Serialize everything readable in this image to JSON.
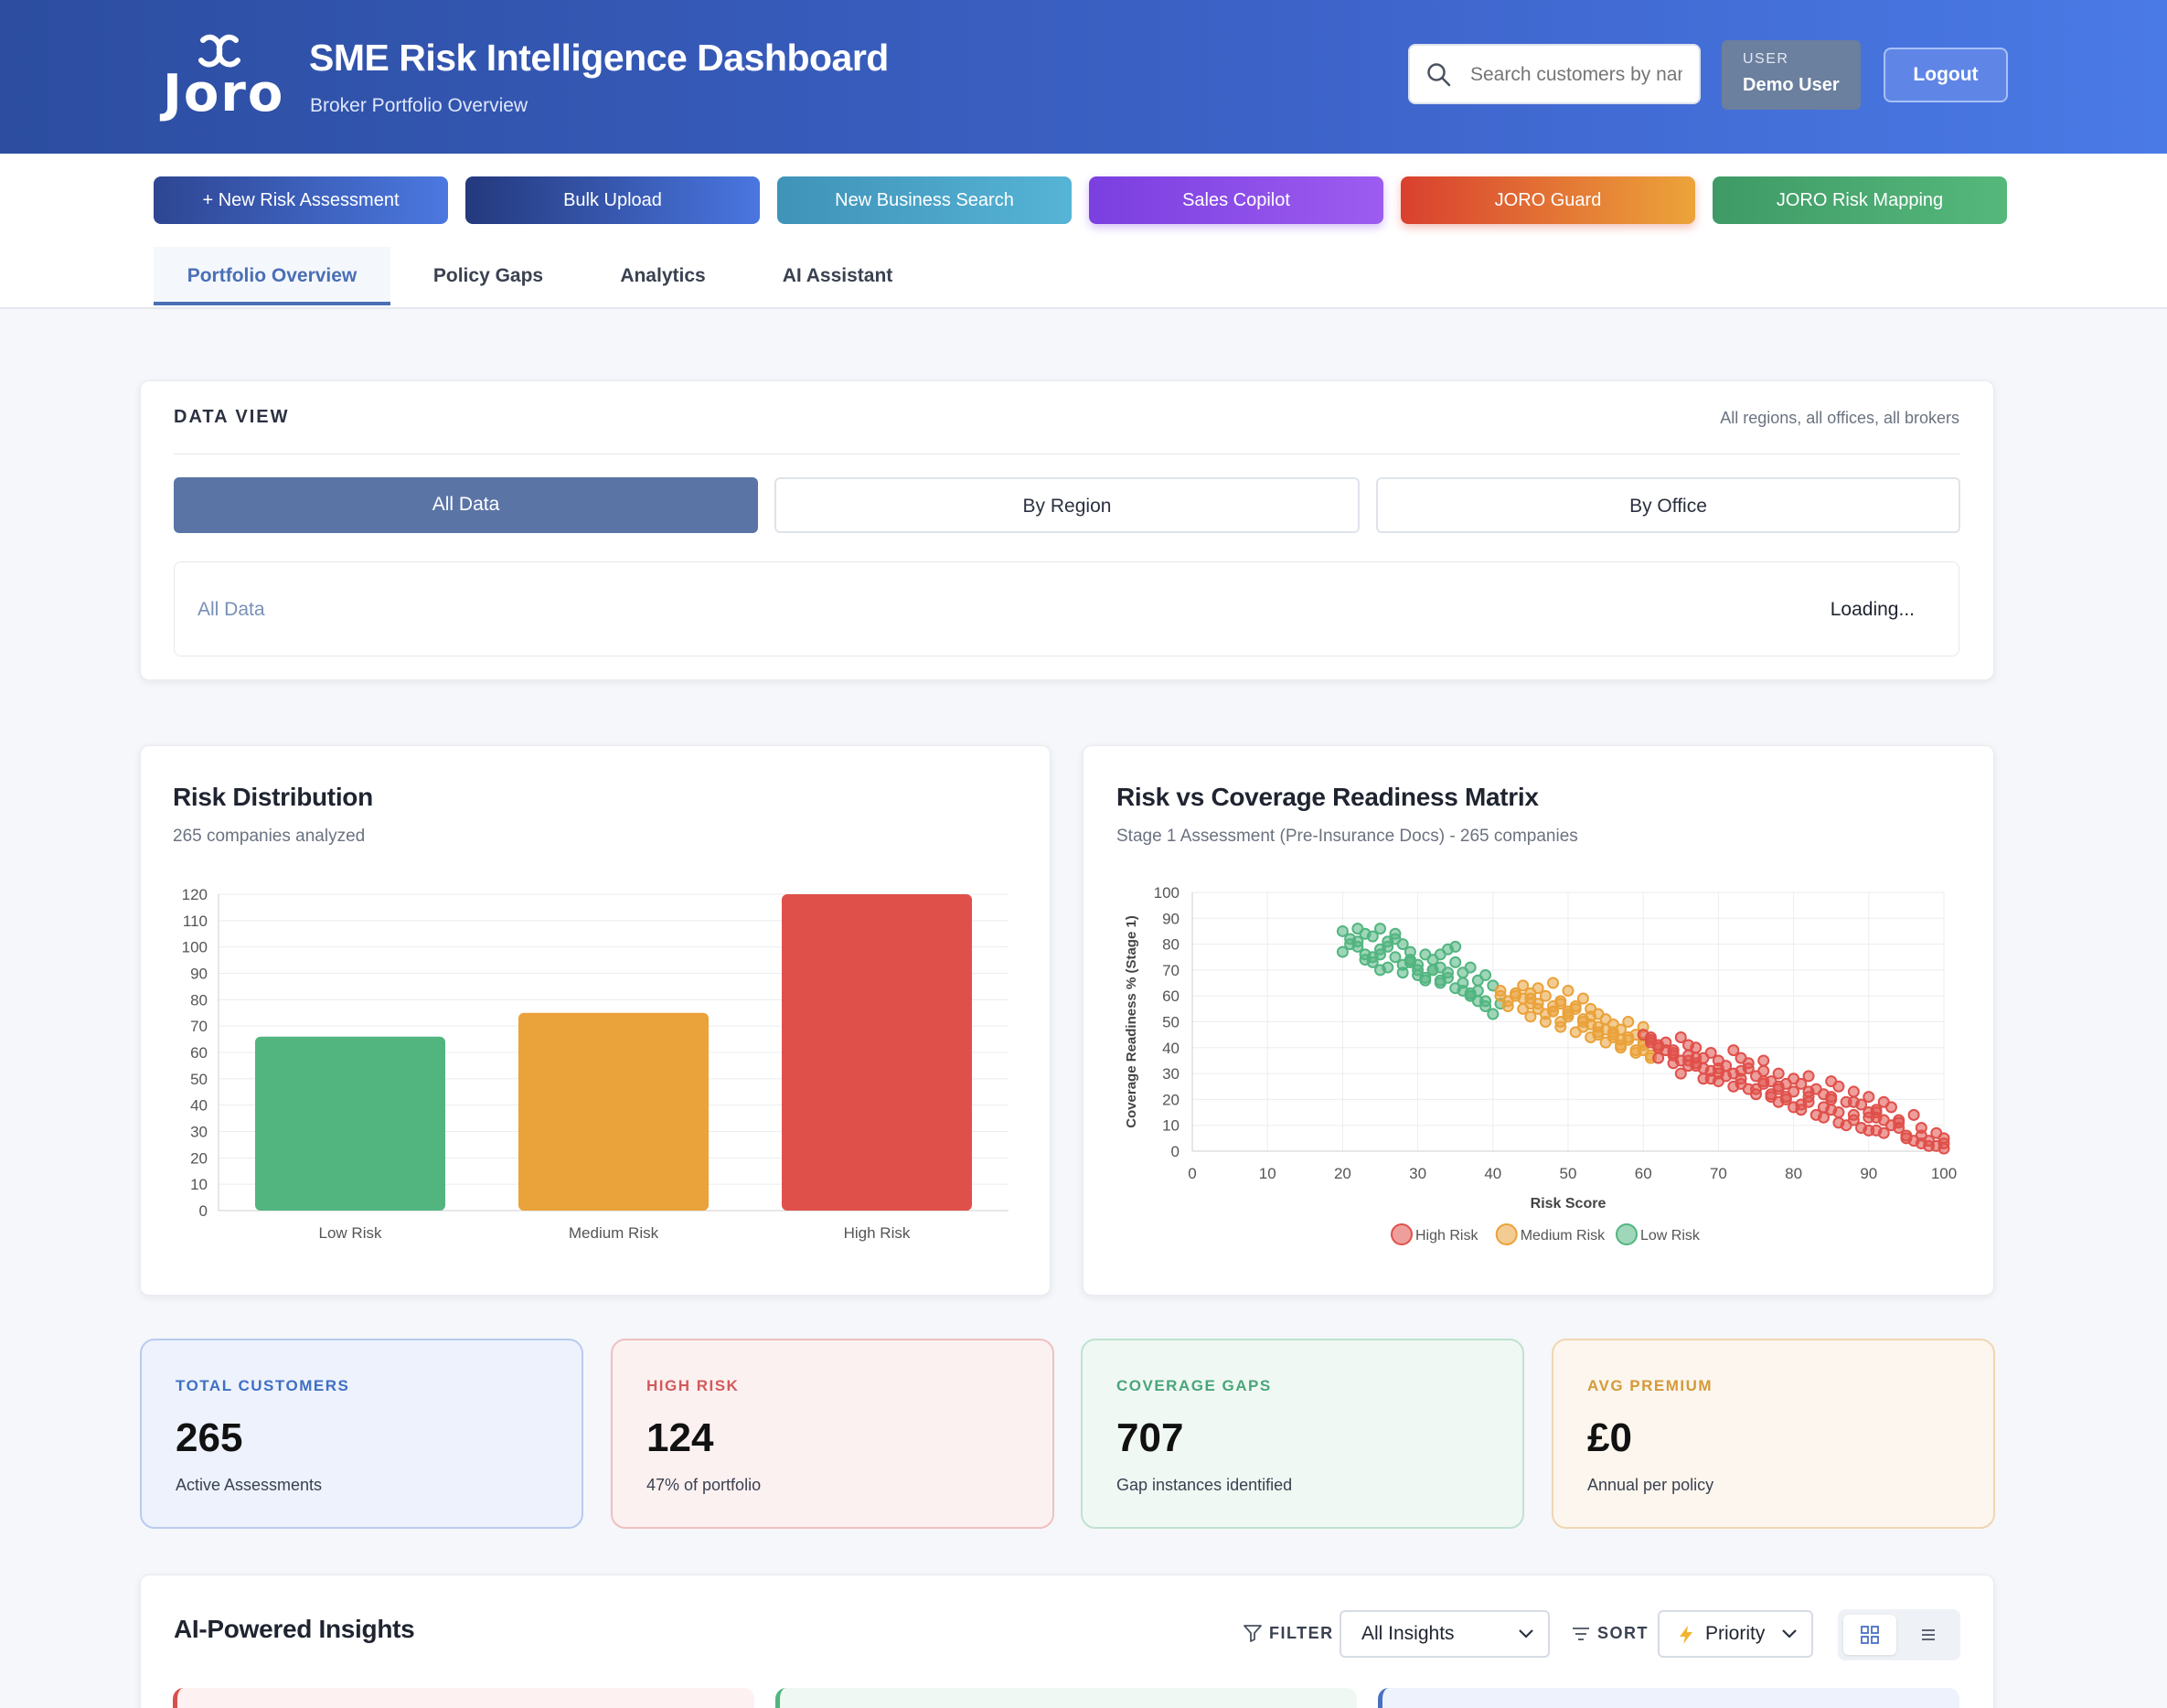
{
  "header": {
    "logo_text": "Joro",
    "title": "SME Risk Intelligence Dashboard",
    "subtitle": "Broker Portfolio Overview",
    "search_placeholder": "Search customers by name...",
    "user_label": "USER",
    "user_name": "Demo User",
    "logout_label": "Logout"
  },
  "actions": [
    {
      "label": "+ New Risk Assessment",
      "color": "#3a5bb8"
    },
    {
      "label": "Bulk Upload",
      "color": "#2f4a9a"
    },
    {
      "label": "New Business Search",
      "color": "#4aa6c9"
    },
    {
      "label": "Sales Copilot",
      "color": "#8a4de8"
    },
    {
      "label": "JORO Guard",
      "color": "#e0503a"
    },
    {
      "label": "JORO Risk Mapping",
      "color": "#4aaa70"
    }
  ],
  "tabs": [
    "Portfolio Overview",
    "Policy Gaps",
    "Analytics",
    "AI Assistant"
  ],
  "active_tab": "Portfolio Overview",
  "data_view": {
    "title": "DATA VIEW",
    "scope_note": "All regions, all offices, all brokers",
    "segments": [
      "All Data",
      "By Region",
      "By Office"
    ],
    "selected_segment": "All Data",
    "info_label": "All Data",
    "info_status": "Loading..."
  },
  "risk_distribution": {
    "title": "Risk Distribution",
    "subtitle": "265 companies analyzed"
  },
  "matrix": {
    "title": "Risk vs Coverage Readiness Matrix",
    "subtitle": "Stage 1 Assessment (Pre-Insurance Docs) - 265 companies"
  },
  "chart_data": [
    {
      "type": "bar",
      "categories": [
        "Low Risk",
        "Medium Risk",
        "High Risk"
      ],
      "values": [
        66,
        75,
        124
      ],
      "colors": [
        "#52b580",
        "#eaa23a",
        "#e0504b"
      ],
      "title": "Risk Distribution",
      "xlabel": "",
      "ylabel": "",
      "ylim": [
        0,
        120
      ],
      "ticks": [
        0,
        10,
        20,
        30,
        40,
        50,
        60,
        70,
        80,
        90,
        100,
        110,
        120
      ],
      "grid": true
    },
    {
      "type": "scatter",
      "title": "Risk vs Coverage Readiness Matrix",
      "xlabel": "Risk Score",
      "ylabel": "Coverage Readiness % (Stage 1)",
      "xlim": [
        0,
        100
      ],
      "ylim": [
        0,
        100
      ],
      "xticks": [
        0,
        10,
        20,
        30,
        40,
        50,
        60,
        70,
        80,
        90,
        100
      ],
      "yticks": [
        0,
        10,
        20,
        30,
        40,
        50,
        60,
        70,
        80,
        90,
        100
      ],
      "grid": true,
      "legend_position": "bottom",
      "series": [
        {
          "name": "High Risk",
          "color": "#e0504b",
          "x": [
            60,
            61,
            62,
            62,
            63,
            64,
            64,
            65,
            65,
            66,
            66,
            67,
            67,
            68,
            68,
            69,
            69,
            70,
            70,
            71,
            72,
            72,
            73,
            73,
            74,
            74,
            75,
            75,
            76,
            76,
            77,
            77,
            78,
            78,
            79,
            80,
            80,
            81,
            81,
            82,
            82,
            83,
            84,
            84,
            85,
            85,
            86,
            86,
            87,
            88,
            88,
            89,
            90,
            90,
            91,
            91,
            92,
            92,
            93,
            94,
            95,
            96,
            97,
            98,
            99,
            100,
            62,
            65,
            68,
            71,
            74,
            77,
            80,
            83,
            86,
            89,
            92,
            95,
            98,
            63,
            66,
            69,
            72,
            75,
            78,
            81,
            84,
            87,
            90,
            93,
            96,
            99,
            61,
            67,
            73,
            79,
            85,
            91,
            97,
            64,
            70,
            76,
            82,
            88,
            94,
            100,
            61,
            64,
            67,
            70,
            73,
            76,
            79,
            82,
            85,
            88,
            91,
            94,
            97,
            100,
            66,
            78,
            90
          ],
          "y": [
            45,
            43,
            40,
            36,
            42,
            38,
            34,
            44,
            30,
            41,
            37,
            33,
            40,
            28,
            36,
            38,
            31,
            35,
            27,
            33,
            39,
            30,
            36,
            26,
            32,
            34,
            29,
            24,
            31,
            35,
            27,
            22,
            30,
            25,
            20,
            28,
            23,
            18,
            26,
            21,
            29,
            24,
            17,
            22,
            27,
            20,
            15,
            25,
            19,
            14,
            23,
            18,
            13,
            21,
            16,
            8,
            19,
            12,
            17,
            11,
            6,
            14,
            9,
            4,
            7,
            3,
            41,
            35,
            32,
            29,
            24,
            21,
            17,
            14,
            11,
            9,
            7,
            5,
            2,
            39,
            33,
            28,
            25,
            22,
            19,
            16,
            13,
            10,
            8,
            10,
            4,
            2,
            44,
            36,
            31,
            26,
            21,
            15,
            6,
            37,
            30,
            27,
            23,
            19,
            12,
            5,
            42,
            39,
            34,
            32,
            28,
            26,
            21,
            19,
            16,
            12,
            13,
            9,
            3,
            1,
            35,
            24,
            15
          ]
        },
        {
          "name": "Medium Risk",
          "color": "#eaa23a",
          "x": [
            41,
            42,
            43,
            44,
            44,
            45,
            45,
            46,
            46,
            47,
            47,
            48,
            48,
            49,
            49,
            50,
            50,
            51,
            51,
            52,
            52,
            53,
            53,
            54,
            54,
            55,
            55,
            56,
            56,
            57,
            57,
            58,
            58,
            59,
            59,
            60,
            60,
            61,
            61,
            42,
            46,
            50,
            54,
            58,
            62,
            44,
            48,
            52,
            56,
            60,
            43,
            47,
            51,
            55,
            59,
            45,
            49,
            53,
            57,
            61,
            41,
            45,
            49,
            53,
            57,
            48,
            52,
            56,
            60,
            50,
            54
          ],
          "y": [
            62,
            58,
            61,
            55,
            64,
            52,
            59,
            57,
            63,
            50,
            60,
            54,
            65,
            48,
            58,
            52,
            62,
            46,
            56,
            50,
            59,
            44,
            55,
            48,
            53,
            42,
            51,
            46,
            49,
            40,
            47,
            43,
            50,
            38,
            45,
            41,
            48,
            37,
            43,
            56,
            55,
            53,
            46,
            44,
            40,
            59,
            54,
            51,
            45,
            42,
            60,
            53,
            55,
            47,
            39,
            57,
            50,
            52,
            41,
            36,
            60,
            61,
            57,
            49,
            43,
            56,
            48,
            44,
            39,
            54,
            45
          ]
        },
        {
          "name": "Low Risk",
          "color": "#52b580",
          "x": [
            20,
            21,
            22,
            22,
            23,
            23,
            24,
            24,
            25,
            25,
            26,
            26,
            27,
            27,
            28,
            28,
            29,
            29,
            30,
            30,
            31,
            31,
            32,
            32,
            33,
            33,
            34,
            34,
            35,
            35,
            36,
            36,
            37,
            37,
            38,
            38,
            39,
            39,
            40,
            40,
            20,
            24,
            28,
            32,
            36,
            21,
            25,
            29,
            33,
            37,
            22,
            26,
            30,
            34,
            38,
            23,
            27,
            31,
            35,
            39,
            25,
            29,
            33,
            37,
            41
          ],
          "y": [
            85,
            82,
            86,
            79,
            84,
            76,
            83,
            73,
            86,
            78,
            81,
            71,
            84,
            75,
            80,
            69,
            77,
            73,
            72,
            68,
            76,
            66,
            74,
            70,
            71,
            65,
            78,
            67,
            73,
            63,
            69,
            62,
            71,
            60,
            66,
            58,
            68,
            56,
            64,
            53,
            77,
            75,
            72,
            70,
            65,
            80,
            70,
            73,
            76,
            61,
            81,
            79,
            70,
            69,
            62,
            74,
            82,
            67,
            79,
            58,
            76,
            74,
            66,
            60,
            57
          ]
        }
      ]
    }
  ],
  "stats": [
    {
      "label": "TOTAL CUSTOMERS",
      "value": "265",
      "desc": "Active Assessments",
      "accent": "#3f6fc4",
      "bg": "#edf2fc",
      "border": "#b9cbee"
    },
    {
      "label": "HIGH RISK",
      "value": "124",
      "desc": "47% of portfolio",
      "accent": "#d25a5a",
      "bg": "#fcf1f1",
      "border": "#efc0c0"
    },
    {
      "label": "COVERAGE GAPS",
      "value": "707",
      "desc": "Gap instances identified",
      "accent": "#4aa57a",
      "bg": "#f0f8f4",
      "border": "#bfe2cf"
    },
    {
      "label": "AVG PREMIUM",
      "value": "£0",
      "desc": "Annual per policy",
      "accent": "#d49a3a",
      "bg": "#fcf6ee",
      "border": "#f0d6b3"
    }
  ],
  "insights": {
    "title": "AI-Powered Insights",
    "filter_label": "FILTER",
    "filter_value": "All Insights",
    "sort_label": "SORT",
    "sort_value": "Priority",
    "sort_icon": "bolt-icon"
  }
}
